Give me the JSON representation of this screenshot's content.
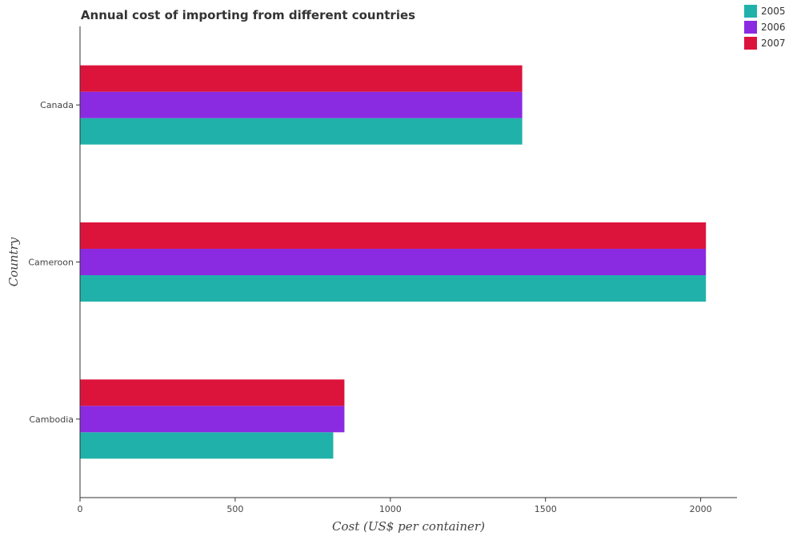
{
  "chart_data": {
    "type": "bar",
    "orientation": "horizontal",
    "title": "Annual cost of importing from different countries",
    "xlabel": "Cost (US$ per container)",
    "ylabel": "Country",
    "categories": [
      "Cambodia",
      "Cameroon",
      "Canada"
    ],
    "series": [
      {
        "name": "2005",
        "color": "#20b2aa",
        "values": [
          816,
          2017,
          1425
        ]
      },
      {
        "name": "2006",
        "color": "#8a2be2",
        "values": [
          852,
          2017,
          1425
        ]
      },
      {
        "name": "2007",
        "color": "#dc143c",
        "values": [
          852,
          2017,
          1425
        ]
      }
    ],
    "xlim": [
      0,
      2117
    ],
    "xticks": [
      0,
      500,
      1000,
      1500,
      2000
    ],
    "xtick_labels": [
      "0",
      "500",
      "1000",
      "1500",
      "2000"
    ],
    "grid": false,
    "legend_position": "top-right"
  }
}
